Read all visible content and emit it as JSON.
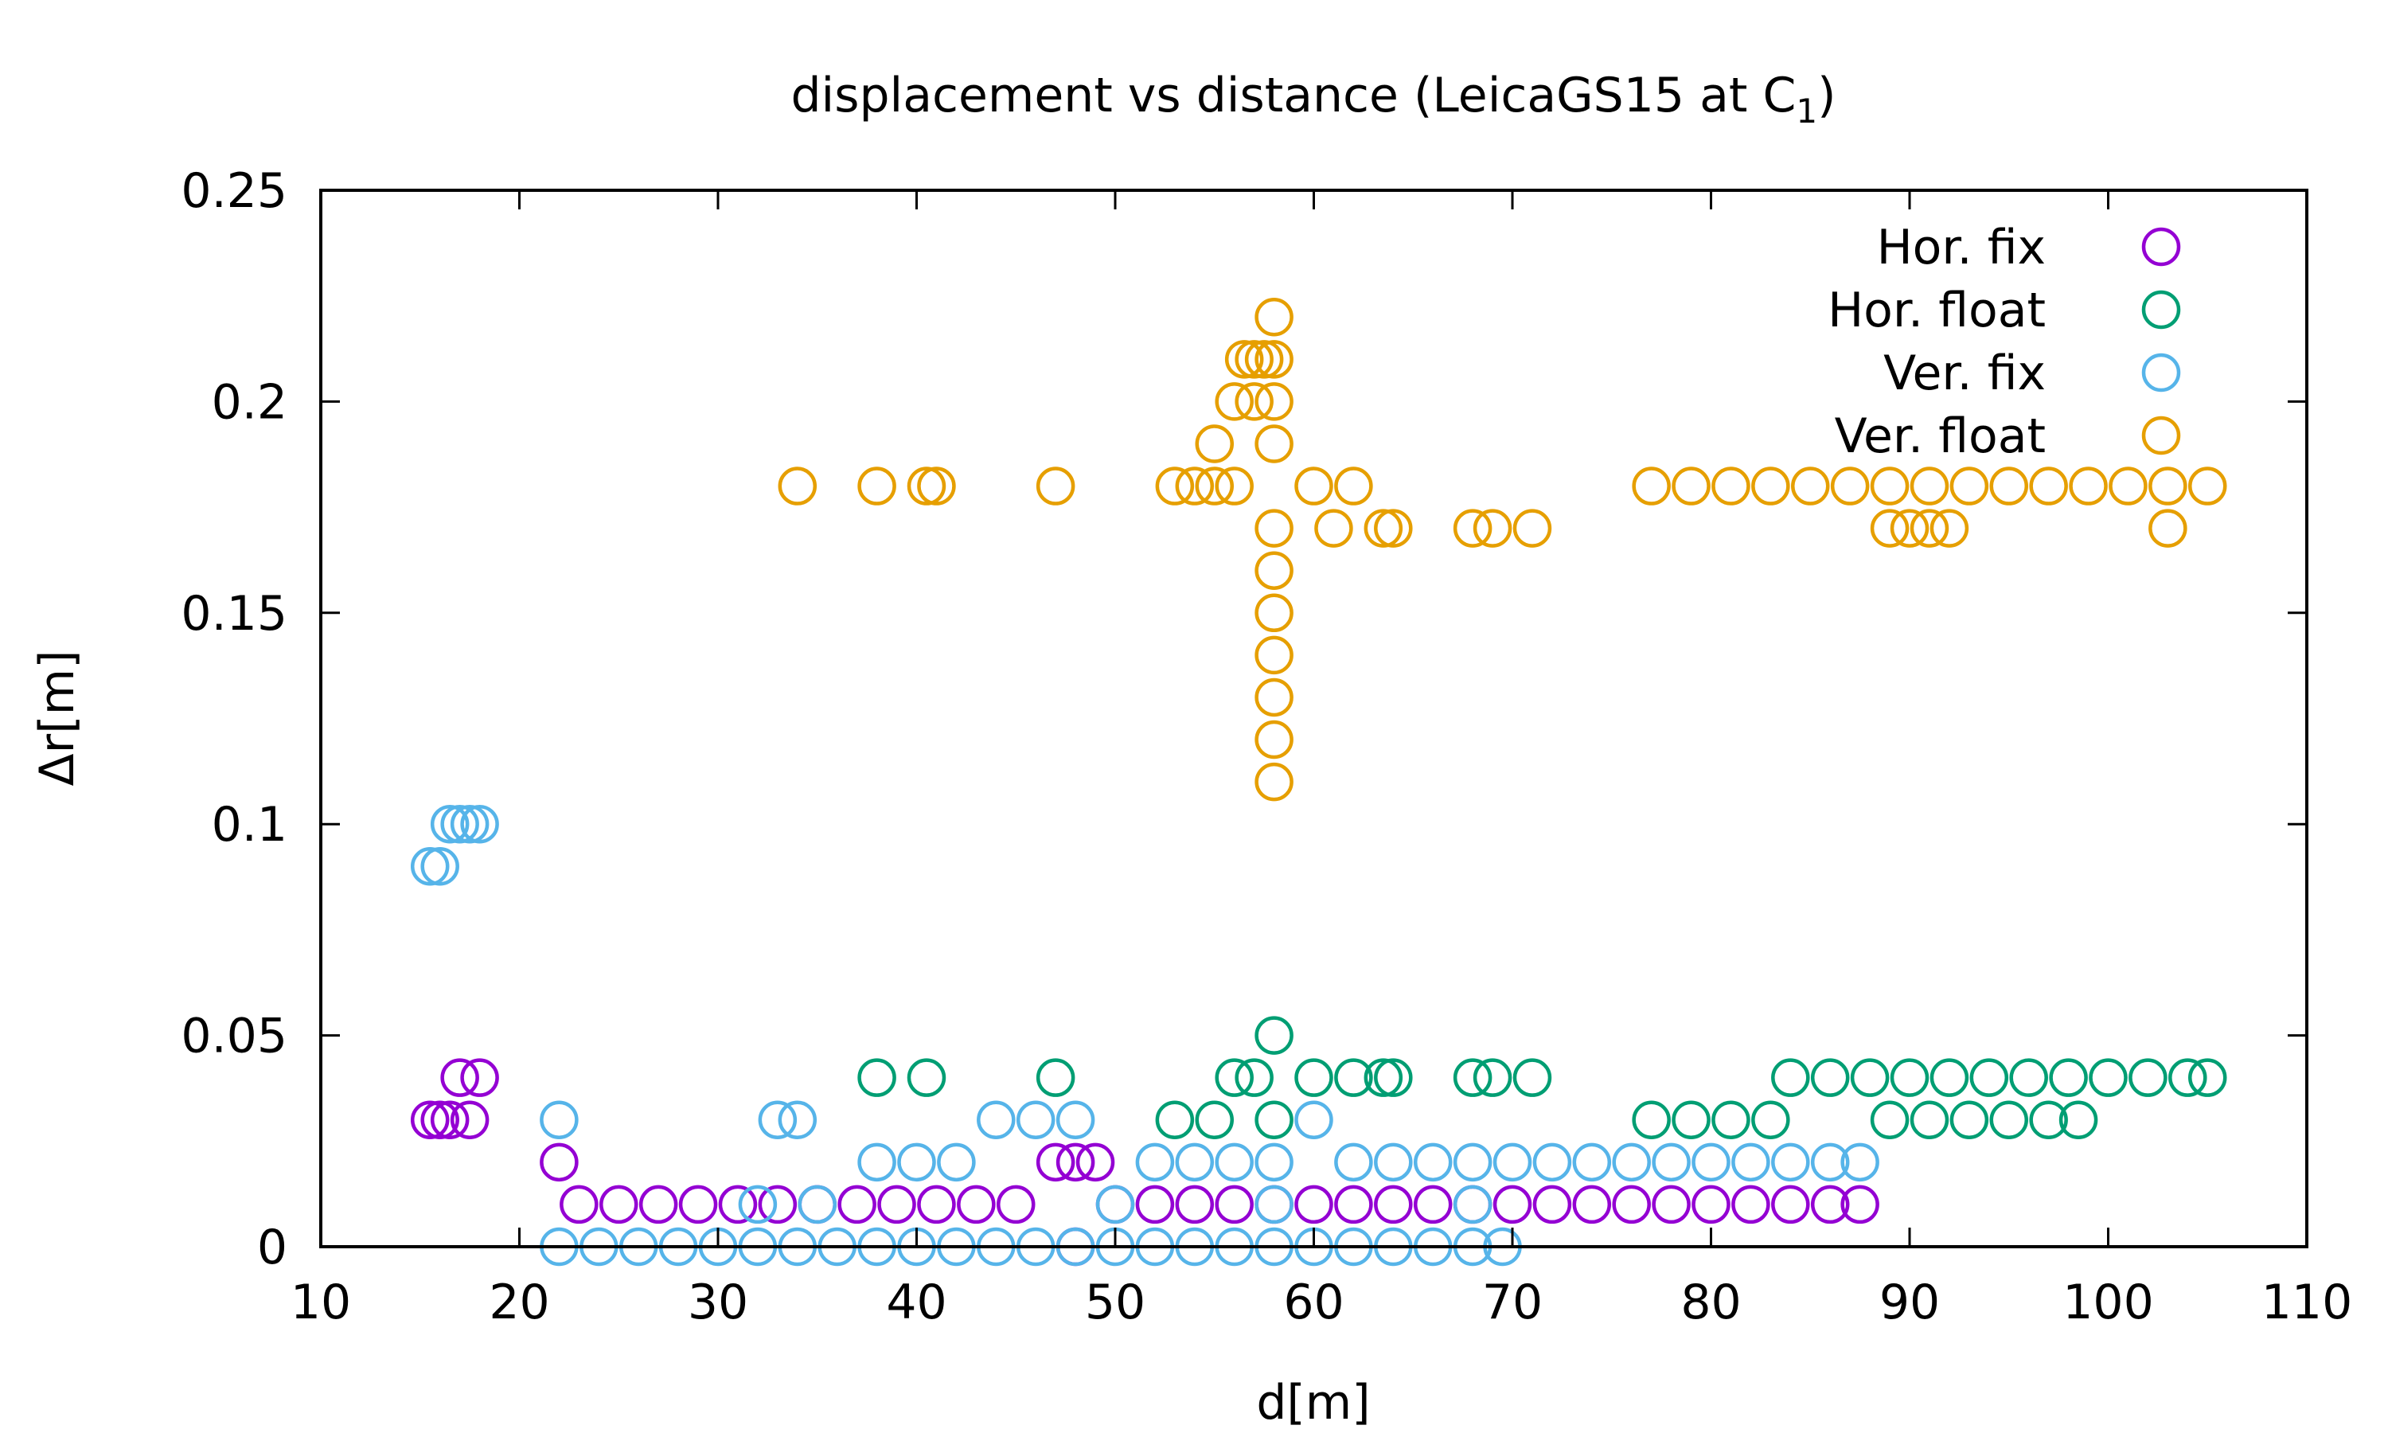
{
  "chart_data": {
    "type": "scatter",
    "title": "displacement vs distance (LeicaGS15 at C",
    "title_subscript": "1",
    "title_suffix": ")",
    "xlabel": "d[m]",
    "ylabel": "Δr[m]",
    "xlim": [
      10,
      110
    ],
    "ylim": [
      0,
      0.25
    ],
    "xticks": [
      "10",
      "20",
      "30",
      "40",
      "50",
      "60",
      "70",
      "80",
      "90",
      "100",
      "110"
    ],
    "yticks": [
      "0",
      "0.05",
      "0.1",
      "0.15",
      "0.2",
      "0.25"
    ],
    "grid": false,
    "legend_position": "top-right",
    "series": [
      {
        "name": "Hor. fix",
        "color": "#9400d3",
        "points": [
          [
            15.5,
            0.03
          ],
          [
            16,
            0.03
          ],
          [
            16.5,
            0.03
          ],
          [
            17,
            0.04
          ],
          [
            17.5,
            0.03
          ],
          [
            18,
            0.04
          ],
          [
            22,
            0.02
          ],
          [
            23,
            0.01
          ],
          [
            25,
            0.01
          ],
          [
            27,
            0.01
          ],
          [
            29,
            0.01
          ],
          [
            31,
            0.01
          ],
          [
            33,
            0.01
          ],
          [
            35,
            0.01
          ],
          [
            37,
            0.01
          ],
          [
            39,
            0.01
          ],
          [
            41,
            0.01
          ],
          [
            43,
            0.01
          ],
          [
            45,
            0.01
          ],
          [
            47,
            0.02
          ],
          [
            48,
            0.02
          ],
          [
            49,
            0.02
          ],
          [
            48,
            0
          ],
          [
            50,
            0.01
          ],
          [
            52,
            0.01
          ],
          [
            54,
            0.01
          ],
          [
            56,
            0.01
          ],
          [
            58,
            0.01
          ],
          [
            60,
            0.01
          ],
          [
            62,
            0.01
          ],
          [
            64,
            0.01
          ],
          [
            66,
            0.01
          ],
          [
            68,
            0.01
          ],
          [
            70,
            0.01
          ],
          [
            72,
            0.01
          ],
          [
            74,
            0.01
          ],
          [
            76,
            0.01
          ],
          [
            78,
            0.01
          ],
          [
            80,
            0.01
          ],
          [
            82,
            0.01
          ],
          [
            84,
            0.01
          ],
          [
            86,
            0.01
          ],
          [
            87.5,
            0.01
          ]
        ]
      },
      {
        "name": "Hor. float",
        "color": "#009e73",
        "points": [
          [
            38,
            0.04
          ],
          [
            40.5,
            0.04
          ],
          [
            47,
            0.04
          ],
          [
            53,
            0.03
          ],
          [
            55,
            0.03
          ],
          [
            56,
            0.04
          ],
          [
            57,
            0.04
          ],
          [
            58,
            0.05
          ],
          [
            58,
            0.03
          ],
          [
            60,
            0.04
          ],
          [
            62,
            0.04
          ],
          [
            63.5,
            0.04
          ],
          [
            64,
            0.04
          ],
          [
            68,
            0.04
          ],
          [
            69,
            0.04
          ],
          [
            71,
            0.04
          ],
          [
            77,
            0.03
          ],
          [
            79,
            0.03
          ],
          [
            81,
            0.03
          ],
          [
            83,
            0.03
          ],
          [
            84,
            0.04
          ],
          [
            86,
            0.04
          ],
          [
            88,
            0.04
          ],
          [
            90,
            0.04
          ],
          [
            92,
            0.04
          ],
          [
            94,
            0.04
          ],
          [
            96,
            0.04
          ],
          [
            98,
            0.04
          ],
          [
            100,
            0.04
          ],
          [
            102,
            0.04
          ],
          [
            104,
            0.04
          ],
          [
            105,
            0.04
          ],
          [
            89,
            0.03
          ],
          [
            91,
            0.03
          ],
          [
            93,
            0.03
          ],
          [
            95,
            0.03
          ],
          [
            97,
            0.03
          ],
          [
            98.5,
            0.03
          ]
        ]
      },
      {
        "name": "Ver. fix",
        "color": "#56b4e9",
        "points": [
          [
            15.5,
            0.09
          ],
          [
            16,
            0.09
          ],
          [
            16.5,
            0.1
          ],
          [
            17,
            0.1
          ],
          [
            17.5,
            0.1
          ],
          [
            18,
            0.1
          ],
          [
            22,
            0.03
          ],
          [
            22,
            0
          ],
          [
            24,
            0
          ],
          [
            26,
            0
          ],
          [
            28,
            0
          ],
          [
            30,
            0
          ],
          [
            32,
            0
          ],
          [
            34,
            0
          ],
          [
            36,
            0
          ],
          [
            38,
            0
          ],
          [
            40,
            0
          ],
          [
            42,
            0
          ],
          [
            44,
            0
          ],
          [
            46,
            0
          ],
          [
            48,
            0
          ],
          [
            50,
            0
          ],
          [
            52,
            0
          ],
          [
            54,
            0
          ],
          [
            56,
            0
          ],
          [
            58,
            0
          ],
          [
            60,
            0
          ],
          [
            62,
            0
          ],
          [
            64,
            0
          ],
          [
            66,
            0
          ],
          [
            68,
            0
          ],
          [
            69.5,
            0
          ],
          [
            33,
            0.03
          ],
          [
            34,
            0.03
          ],
          [
            32,
            0.01
          ],
          [
            35,
            0.01
          ],
          [
            38,
            0.02
          ],
          [
            40,
            0.02
          ],
          [
            42,
            0.02
          ],
          [
            44,
            0.03
          ],
          [
            46,
            0.03
          ],
          [
            48,
            0.03
          ],
          [
            50,
            0.01
          ],
          [
            52,
            0.02
          ],
          [
            54,
            0.02
          ],
          [
            56,
            0.02
          ],
          [
            58,
            0.02
          ],
          [
            60,
            0.03
          ],
          [
            62,
            0.02
          ],
          [
            64,
            0.02
          ],
          [
            66,
            0.02
          ],
          [
            68,
            0.02
          ],
          [
            70,
            0.02
          ],
          [
            72,
            0.02
          ],
          [
            74,
            0.02
          ],
          [
            76,
            0.02
          ],
          [
            78,
            0.02
          ],
          [
            80,
            0.02
          ],
          [
            82,
            0.02
          ],
          [
            84,
            0.02
          ],
          [
            86,
            0.02
          ],
          [
            87.5,
            0.02
          ],
          [
            58,
            0.01
          ],
          [
            68,
            0.01
          ]
        ]
      },
      {
        "name": "Ver. float",
        "color": "#e69f00",
        "points": [
          [
            34,
            0.18
          ],
          [
            38,
            0.18
          ],
          [
            40.5,
            0.18
          ],
          [
            41,
            0.18
          ],
          [
            47,
            0.18
          ],
          [
            53,
            0.18
          ],
          [
            54,
            0.18
          ],
          [
            55,
            0.18
          ],
          [
            56,
            0.18
          ],
          [
            55,
            0.19
          ],
          [
            56,
            0.2
          ],
          [
            57,
            0.2
          ],
          [
            56.5,
            0.21
          ],
          [
            57,
            0.21
          ],
          [
            57.5,
            0.21
          ],
          [
            58,
            0.22
          ],
          [
            58,
            0.21
          ],
          [
            58,
            0.2
          ],
          [
            58,
            0.19
          ],
          [
            58,
            0.17
          ],
          [
            58,
            0.16
          ],
          [
            58,
            0.15
          ],
          [
            58,
            0.14
          ],
          [
            58,
            0.13
          ],
          [
            58,
            0.12
          ],
          [
            58,
            0.11
          ],
          [
            60,
            0.18
          ],
          [
            61,
            0.17
          ],
          [
            62,
            0.18
          ],
          [
            63.5,
            0.17
          ],
          [
            64,
            0.17
          ],
          [
            68,
            0.17
          ],
          [
            69,
            0.17
          ],
          [
            71,
            0.17
          ],
          [
            77,
            0.18
          ],
          [
            79,
            0.18
          ],
          [
            81,
            0.18
          ],
          [
            83,
            0.18
          ],
          [
            85,
            0.18
          ],
          [
            87,
            0.18
          ],
          [
            89,
            0.18
          ],
          [
            91,
            0.18
          ],
          [
            93,
            0.18
          ],
          [
            95,
            0.18
          ],
          [
            97,
            0.18
          ],
          [
            99,
            0.18
          ],
          [
            101,
            0.18
          ],
          [
            103,
            0.18
          ],
          [
            105,
            0.18
          ],
          [
            89,
            0.17
          ],
          [
            90,
            0.17
          ],
          [
            91,
            0.17
          ],
          [
            92,
            0.17
          ],
          [
            103,
            0.17
          ]
        ]
      }
    ]
  }
}
